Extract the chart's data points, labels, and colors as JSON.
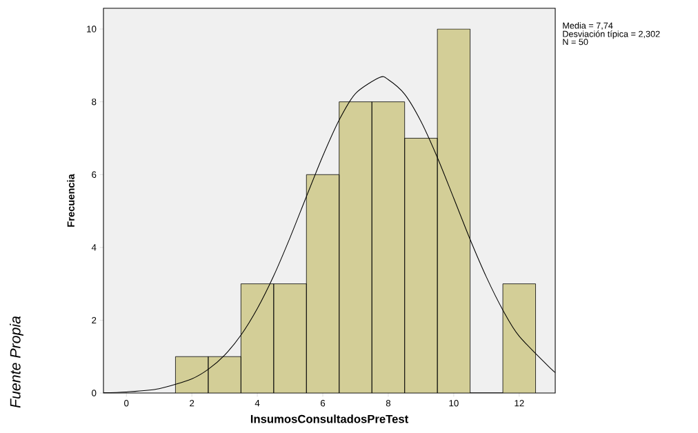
{
  "chart_data": {
    "type": "histogram",
    "xlabel": "InsumosConsultadosPreTest",
    "ylabel": "Frecuencia",
    "bins": [
      1.5,
      2.5,
      3.5,
      4.5,
      5.5,
      6.5,
      7.5,
      8.5,
      9.5,
      10.5,
      11.5,
      12.5
    ],
    "series": [
      {
        "color": "#d3ce97",
        "values": [
          1,
          1,
          3,
          3,
          6,
          8,
          8,
          7,
          10,
          0,
          3
        ]
      },
      {
        "type": "line",
        "color": "#000000",
        "x": [
          -0.7,
          0,
          1,
          2,
          2.5,
          3,
          3.5,
          4,
          4.5,
          5,
          5.5,
          6,
          6.5,
          7,
          7.74,
          8,
          8.5,
          9,
          9.5,
          10,
          10.5,
          11,
          11.5,
          12,
          13,
          13.1
        ],
        "values": [
          0.01,
          0.03,
          0.12,
          0.39,
          0.65,
          1.04,
          1.59,
          2.32,
          3.22,
          4.27,
          5.4,
          6.51,
          7.5,
          8.23,
          8.67,
          8.61,
          8.21,
          7.46,
          6.47,
          5.35,
          4.22,
          3.18,
          2.28,
          1.56,
          0.64,
          0.58
        ]
      }
    ],
    "xlim": [
      -0.7,
      13.1
    ],
    "ylim": [
      0,
      10.57
    ],
    "xticks": [
      0,
      2,
      4,
      6,
      8,
      10,
      12
    ],
    "yticks": [
      0,
      2,
      4,
      6,
      8,
      10
    ],
    "marker": "none",
    "grid": false,
    "annotations": [
      "Media = 7,74",
      "Desviación típica = 2,302",
      "N = 50",
      "Fuente Propia"
    ]
  }
}
